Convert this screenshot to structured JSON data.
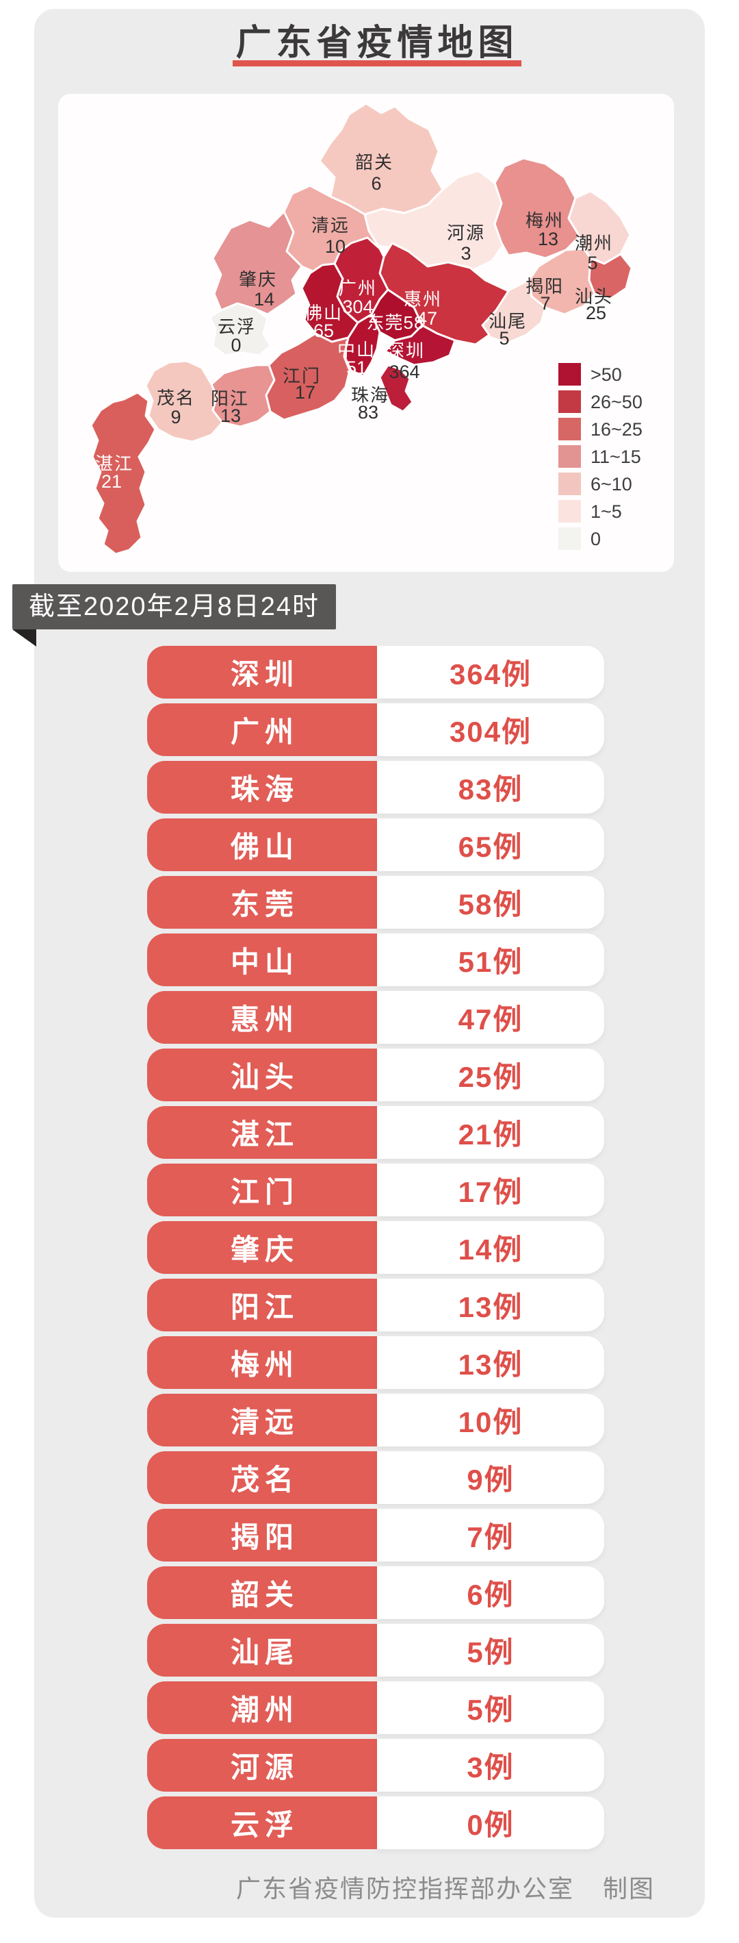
{
  "page": {
    "title": "广东省疫情地图",
    "date_banner": "截至2020年2月8日24时",
    "footer": {
      "org": "广东省疫情防控指挥部办公室",
      "credit": "制图"
    }
  },
  "colors": {
    "accent_red": "#e0544e",
    "pill_red": "#e15d56",
    "pill_value_red": "#df4f49",
    "ribbon_bg": "#595656",
    "ribbon_fold": "#262222",
    "panel_bg": "#ececec",
    "footer_text": "#8d8b8b"
  },
  "chart_data": {
    "type": "heatmap",
    "title": "广东省疫情地图",
    "as_of": "截至2020年2月8日24时",
    "unit": "例",
    "legend_position": "right-bottom",
    "legend": [
      {
        "label": ">50",
        "color": "#b01231"
      },
      {
        "label": "26~50",
        "color": "#c43a44"
      },
      {
        "label": "16~25",
        "color": "#d76765"
      },
      {
        "label": "11~15",
        "color": "#e29492"
      },
      {
        "label": "6~10",
        "color": "#f2c6bf"
      },
      {
        "label": "1~5",
        "color": "#fbe4e0"
      },
      {
        "label": "0",
        "color": "#f3f3f0"
      }
    ],
    "regions": [
      {
        "id": "shenzhen",
        "name": "深圳",
        "value": 364,
        "fill": "#b51434"
      },
      {
        "id": "guangzhou",
        "name": "广州",
        "value": 304,
        "fill": "#c02138"
      },
      {
        "id": "zhuhai",
        "name": "珠海",
        "value": 83,
        "fill": "#bd1f3b"
      },
      {
        "id": "foshan",
        "name": "佛山",
        "value": 65,
        "fill": "#b5152f"
      },
      {
        "id": "dongguan",
        "name": "东莞",
        "value": 58,
        "fill": "#ae0f2c"
      },
      {
        "id": "zhongshan",
        "name": "中山",
        "value": 51,
        "fill": "#b5122f"
      },
      {
        "id": "huizhou",
        "name": "惠州",
        "value": 47,
        "fill": "#ca333f"
      },
      {
        "id": "shantou",
        "name": "汕头",
        "value": 25,
        "fill": "#d96565"
      },
      {
        "id": "zhanjiang",
        "name": "湛江",
        "value": 21,
        "fill": "#d95f5c"
      },
      {
        "id": "jiangmen",
        "name": "江门",
        "value": 17,
        "fill": "#d96060"
      },
      {
        "id": "zhaoqing",
        "name": "肇庆",
        "value": 14,
        "fill": "#e59394"
      },
      {
        "id": "yangjiang",
        "name": "阳江",
        "value": 13,
        "fill": "#e79492"
      },
      {
        "id": "meizhou",
        "name": "梅州",
        "value": 13,
        "fill": "#e8918f"
      },
      {
        "id": "qingyuan",
        "name": "清远",
        "value": 10,
        "fill": "#f0aca6"
      },
      {
        "id": "maoming",
        "name": "茂名",
        "value": 9,
        "fill": "#f5c8bf"
      },
      {
        "id": "jieyang",
        "name": "揭阳",
        "value": 7,
        "fill": "#f2b6ae"
      },
      {
        "id": "shaoguan",
        "name": "韶关",
        "value": 6,
        "fill": "#f6c9c0"
      },
      {
        "id": "shanwei",
        "name": "汕尾",
        "value": 5,
        "fill": "#f8d9d3"
      },
      {
        "id": "chaozhou",
        "name": "潮州",
        "value": 5,
        "fill": "#f8d7d2"
      },
      {
        "id": "heyuan",
        "name": "河源",
        "value": 3,
        "fill": "#fbe6e2"
      },
      {
        "id": "yunfu",
        "name": "云浮",
        "value": 0,
        "fill": "#f2f1ee"
      }
    ]
  }
}
